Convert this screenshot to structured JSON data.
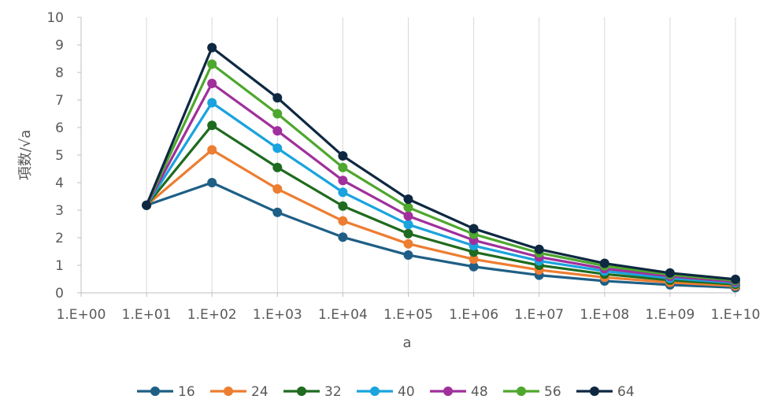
{
  "chart_data": {
    "type": "line",
    "xlabel": "a",
    "ylabel": "項数/√a",
    "x_scale": "log10",
    "x_ticks": [
      "1.E+00",
      "1.E+01",
      "1.E+02",
      "1.E+03",
      "1.E+04",
      "1.E+05",
      "1.E+06",
      "1.E+07",
      "1.E+08",
      "1.E+09",
      "1.E+10"
    ],
    "y_ticks": [
      "0",
      "1",
      "2",
      "3",
      "4",
      "5",
      "6",
      "7",
      "8",
      "9",
      "10"
    ],
    "xlim": [
      1,
      10000000000
    ],
    "ylim": [
      0,
      10
    ],
    "grid": "vertical",
    "legend_position": "bottom",
    "x": [
      10,
      100,
      1000,
      10000,
      100000,
      1000000,
      10000000,
      100000000,
      1000000000,
      10000000000
    ],
    "series": [
      {
        "name": "16",
        "color": "#1f5f86",
        "values": [
          3.18,
          4.0,
          2.92,
          2.02,
          1.37,
          0.95,
          0.64,
          0.43,
          0.29,
          0.19
        ]
      },
      {
        "name": "24",
        "color": "#ed7d31",
        "values": [
          3.18,
          5.19,
          3.77,
          2.61,
          1.78,
          1.22,
          0.83,
          0.56,
          0.38,
          0.25
        ]
      },
      {
        "name": "32",
        "color": "#1f6b1f",
        "values": [
          3.18,
          6.08,
          4.55,
          3.15,
          2.15,
          1.48,
          1.0,
          0.68,
          0.46,
          0.31
        ]
      },
      {
        "name": "40",
        "color": "#1aa3dd",
        "values": [
          3.18,
          6.9,
          5.25,
          3.65,
          2.48,
          1.71,
          1.16,
          0.79,
          0.53,
          0.36
        ]
      },
      {
        "name": "48",
        "color": "#a0309c",
        "values": [
          3.18,
          7.6,
          5.88,
          4.08,
          2.79,
          1.91,
          1.3,
          0.88,
          0.6,
          0.4
        ]
      },
      {
        "name": "56",
        "color": "#4ea72e",
        "values": [
          3.18,
          8.3,
          6.5,
          4.55,
          3.1,
          2.13,
          1.45,
          0.98,
          0.66,
          0.45
        ]
      },
      {
        "name": "64",
        "color": "#0e2841",
        "values": [
          3.18,
          8.9,
          7.08,
          4.97,
          3.4,
          2.33,
          1.58,
          1.07,
          0.72,
          0.49
        ]
      }
    ]
  }
}
